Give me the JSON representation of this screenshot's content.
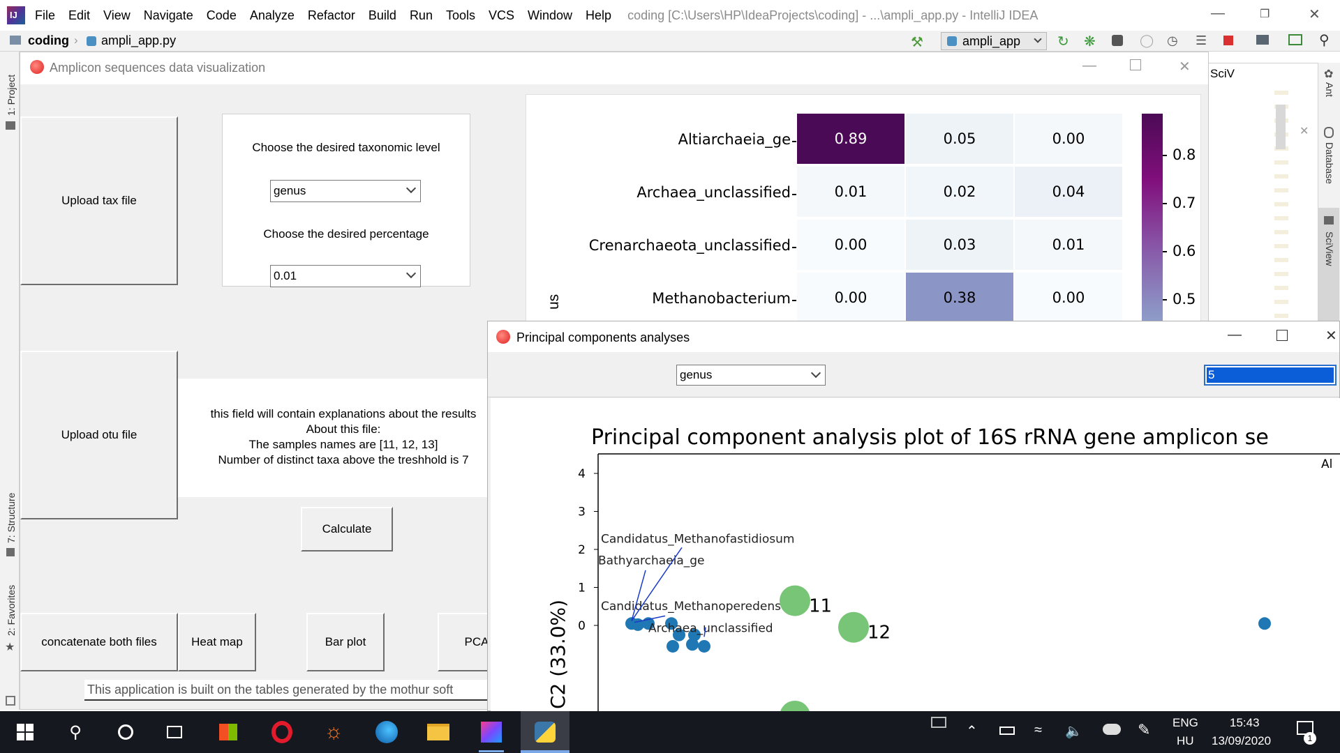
{
  "ide": {
    "menu": [
      "File",
      "Edit",
      "View",
      "Navigate",
      "Code",
      "Analyze",
      "Refactor",
      "Build",
      "Run",
      "Tools",
      "VCS",
      "Window",
      "Help"
    ],
    "title": "coding [C:\\Users\\HP\\IdeaProjects\\coding] - ...\\ampli_app.py - IntelliJ IDEA",
    "breadcrumb_project": "coding",
    "breadcrumb_file": "ampli_app.py",
    "run_config": "ampli_app",
    "left_tabs": [
      "1: Project",
      "7: Structure",
      "2: Favorites"
    ],
    "right_tabs": [
      "Ant",
      "Database",
      "SciView"
    ],
    "sciview_tab": "SciV"
  },
  "amplicon_window": {
    "title": "Amplicon sequences data visualization",
    "upload_tax": "Upload tax file",
    "upload_otu": "Upload otu file",
    "choose_taxonomic_level": "Choose the desired taxonomic level",
    "taxonomic_level_value": "genus",
    "choose_percentage": "Choose the desired percentage",
    "percentage_value": "0.01",
    "explanation_lines": [
      "this field will contain explanations about the results",
      "About this file:",
      "The samples names are [11, 12, 13]",
      "Number of distinct taxa above the treshhold is 7"
    ],
    "calculate": "Calculate",
    "concatenate": "concatenate both files",
    "heat_map": "Heat map",
    "bar_plot": "Bar plot",
    "pca": "PCA",
    "status_text": "This application is built on the tables generated by the mothur soft"
  },
  "heatmap": {
    "rows": [
      "Altiarchaeia_ge",
      "Archaea_unclassified",
      "Crenarchaeota_unclassified",
      "Methanobacterium"
    ],
    "values": [
      [
        "0.89",
        "0.05",
        "0.00"
      ],
      [
        "0.01",
        "0.02",
        "0.04"
      ],
      [
        "0.00",
        "0.03",
        "0.01"
      ],
      [
        "0.00",
        "0.38",
        "0.00"
      ]
    ],
    "colorbar_ticks": [
      "0.8",
      "0.7",
      "0.6",
      "0.5"
    ],
    "ylabel_fragment": "us",
    "colors": {
      "high": "#4b0a55",
      "mid": "#8c96c6",
      "low": "#eef3f8"
    }
  },
  "pca_window": {
    "title": "Principal components analyses",
    "level_value": "genus",
    "input_value": "5"
  },
  "chart_data": {
    "type": "scatter",
    "title": "Principal component analysis plot of 16S rRNA gene amplicon se",
    "ylabel": "C2 (33.0%)",
    "yticks": [
      "4",
      "3",
      "2",
      "1",
      "0"
    ],
    "ylim": [
      -0.5,
      4.8
    ],
    "legend_fragment": "Al",
    "taxa_points": [
      {
        "label": "Candidatus_Methanofastidiosum",
        "y": 0.05
      },
      {
        "label": "Bathyarchaeia_ge",
        "y": 0.05
      },
      {
        "label": "Candidatus_Methanoperedens",
        "y": 0.05
      },
      {
        "label": "Archaea_unclassified",
        "y": -0.25
      }
    ],
    "sample_points": [
      {
        "label": "11",
        "y": 0.65
      },
      {
        "label": "12",
        "y": -0.05
      }
    ]
  },
  "taskbar": {
    "language": "ENG",
    "layout": "HU",
    "time": "15:43",
    "date": "13/09/2020",
    "notifications": "1"
  }
}
